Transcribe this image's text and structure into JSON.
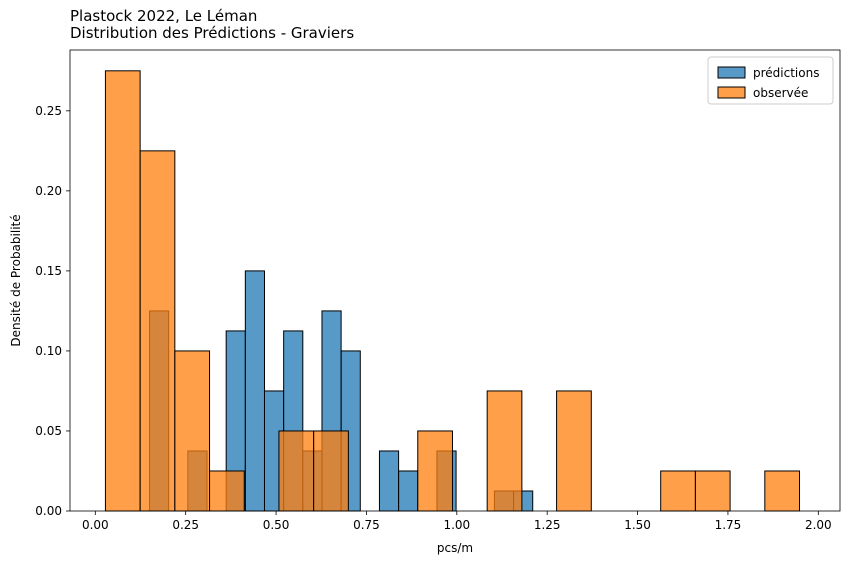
{
  "chart_data": {
    "type": "bar",
    "title_line1": "Plastock 2022, Le Léman",
    "title_line2": "Distribution des Prédictions - Graviers",
    "xlabel": "pcs/m",
    "ylabel": "Densité de Probabilité",
    "xlim": [
      -0.07,
      2.06
    ],
    "ylim": [
      0,
      0.288
    ],
    "xticks": [
      0.0,
      0.25,
      0.5,
      0.75,
      1.0,
      1.25,
      1.5,
      1.75,
      2.0
    ],
    "xtick_labels": [
      "0.00",
      "0.25",
      "0.50",
      "0.75",
      "1.00",
      "1.25",
      "1.50",
      "1.75",
      "2.00"
    ],
    "yticks": [
      0.0,
      0.05,
      0.1,
      0.15,
      0.2,
      0.25
    ],
    "ytick_labels": [
      "0.00",
      "0.05",
      "0.10",
      "0.15",
      "0.20",
      "0.25"
    ],
    "grid": false,
    "legend_placement": "top-right",
    "series": [
      {
        "name": "prédictions",
        "color": "#1f77b4",
        "opacity": 0.75,
        "bins": [
          {
            "x0": 0.15,
            "x1": 0.203,
            "value": 0.125
          },
          {
            "x0": 0.256,
            "x1": 0.309,
            "value": 0.0375
          },
          {
            "x0": 0.362,
            "x1": 0.415,
            "value": 0.1125
          },
          {
            "x0": 0.415,
            "x1": 0.468,
            "value": 0.15
          },
          {
            "x0": 0.468,
            "x1": 0.521,
            "value": 0.075
          },
          {
            "x0": 0.521,
            "x1": 0.574,
            "value": 0.1125
          },
          {
            "x0": 0.574,
            "x1": 0.627,
            "value": 0.0375
          },
          {
            "x0": 0.627,
            "x1": 0.68,
            "value": 0.125
          },
          {
            "x0": 0.68,
            "x1": 0.733,
            "value": 0.1
          },
          {
            "x0": 0.786,
            "x1": 0.839,
            "value": 0.0375
          },
          {
            "x0": 0.839,
            "x1": 0.892,
            "value": 0.025
          },
          {
            "x0": 0.945,
            "x1": 0.998,
            "value": 0.0375
          },
          {
            "x0": 1.104,
            "x1": 1.157,
            "value": 0.0125
          },
          {
            "x0": 1.157,
            "x1": 1.21,
            "value": 0.0125
          }
        ]
      },
      {
        "name": "observée",
        "color": "#ff7f0e",
        "opacity": 0.75,
        "bins": [
          {
            "x0": 0.028,
            "x1": 0.124,
            "value": 0.275
          },
          {
            "x0": 0.124,
            "x1": 0.22,
            "value": 0.225
          },
          {
            "x0": 0.22,
            "x1": 0.316,
            "value": 0.1
          },
          {
            "x0": 0.316,
            "x1": 0.412,
            "value": 0.025
          },
          {
            "x0": 0.508,
            "x1": 0.604,
            "value": 0.05
          },
          {
            "x0": 0.604,
            "x1": 0.7,
            "value": 0.05
          },
          {
            "x0": 0.892,
            "x1": 0.988,
            "value": 0.05
          },
          {
            "x0": 1.084,
            "x1": 1.18,
            "value": 0.075
          },
          {
            "x0": 1.276,
            "x1": 1.372,
            "value": 0.075
          },
          {
            "x0": 1.564,
            "x1": 1.66,
            "value": 0.025
          },
          {
            "x0": 1.66,
            "x1": 1.756,
            "value": 0.025
          },
          {
            "x0": 1.852,
            "x1": 1.948,
            "value": 0.025
          }
        ]
      }
    ]
  }
}
